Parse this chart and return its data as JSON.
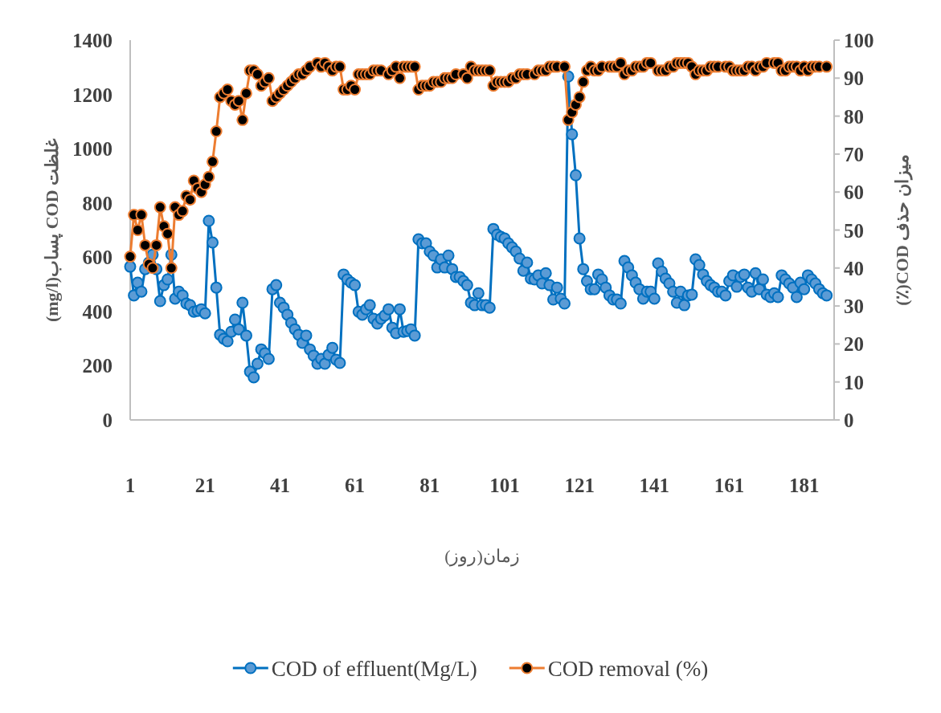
{
  "chart_data": {
    "type": "line",
    "xlabel": "زمان(روز)",
    "ylabel": "غلظت COD پساب(mg/l)",
    "y2label": "میزان حذف COD(٪)",
    "xlim": [
      1,
      189
    ],
    "xticks": [
      1,
      21,
      41,
      61,
      81,
      101,
      121,
      141,
      161,
      181
    ],
    "ylim": [
      0,
      1400
    ],
    "yticks": [
      0,
      200,
      400,
      600,
      800,
      1000,
      1200,
      1400
    ],
    "y2lim": [
      0,
      100
    ],
    "y2ticks": [
      0,
      10,
      20,
      30,
      40,
      50,
      60,
      70,
      80,
      90,
      100
    ],
    "marker": "circle",
    "line_style": "solid",
    "legend": "bottom",
    "series": [
      {
        "name": "COD of effluent(Mg/L)",
        "color": "#0070c0",
        "type": "line",
        "x": [
          1,
          2,
          3,
          4,
          5,
          6,
          7,
          8,
          9,
          10,
          11,
          12,
          13,
          14,
          15,
          16,
          17,
          18,
          19,
          20,
          21,
          22,
          23,
          24,
          25,
          26,
          27,
          28,
          29,
          30,
          31,
          32,
          33,
          34,
          35,
          36,
          37,
          38,
          39,
          40,
          41,
          42,
          43,
          44,
          45,
          46,
          47,
          48,
          49,
          50,
          51,
          52,
          53,
          54,
          55,
          56,
          57,
          58,
          59,
          60,
          61,
          62,
          63,
          64,
          65,
          66,
          67,
          68,
          69,
          70,
          71,
          72,
          73,
          74,
          75,
          76,
          77,
          78,
          79,
          80,
          81,
          82,
          83,
          84,
          85,
          86,
          87,
          88,
          89,
          90,
          91,
          92,
          93,
          94,
          95,
          96,
          97,
          98,
          99,
          100,
          101,
          102,
          103,
          104,
          105,
          106,
          107,
          108,
          109,
          110,
          111,
          112,
          113,
          114,
          115,
          116,
          117,
          118,
          119,
          120,
          121,
          122,
          123,
          124,
          125,
          126,
          127,
          128,
          129,
          130,
          131,
          132,
          133,
          134,
          135,
          136,
          137,
          138,
          139,
          140,
          141,
          142,
          143,
          144,
          145,
          146,
          147,
          148,
          149,
          150,
          151,
          152,
          153,
          154,
          155,
          156,
          157,
          158,
          159,
          160,
          161,
          162,
          163,
          164,
          165,
          166,
          167,
          168,
          169,
          170,
          171,
          172,
          173,
          174,
          175,
          176,
          177,
          178,
          179,
          180,
          181,
          182,
          183,
          184,
          185,
          186,
          187
        ],
        "values": [
          565,
          459,
          506,
          473,
          556,
          580,
          609,
          556,
          438,
          497,
          518,
          609,
          447,
          473,
          459,
          429,
          423,
          399,
          402,
          408,
          393,
          734,
          654,
          488,
          314,
          299,
          290,
          325,
          370,
          334,
          432,
          311,
          178,
          157,
          207,
          260,
          246,
          225,
          482,
          497,
          432,
          414,
          388,
          358,
          334,
          314,
          284,
          311,
          260,
          237,
          207,
          225,
          207,
          240,
          266,
          222,
          210,
          536,
          518,
          506,
          497,
          399,
          388,
          408,
          423,
          373,
          355,
          373,
          385,
          408,
          340,
          320,
          408,
          325,
          328,
          334,
          311,
          666,
          651,
          651,
          621,
          606,
          562,
          592,
          562,
          606,
          556,
          527,
          527,
          512,
          497,
          432,
          423,
          467,
          423,
          423,
          414,
          704,
          683,
          675,
          669,
          651,
          636,
          621,
          595,
          550,
          580,
          521,
          518,
          533,
          503,
          541,
          497,
          444,
          488,
          447,
          429,
          1266,
          1053,
          902,
          669,
          556,
          512,
          482,
          482,
          536,
          518,
          488,
          459,
          444,
          444,
          429,
          586,
          562,
          533,
          506,
          482,
          447,
          473,
          473,
          447,
          577,
          547,
          521,
          503,
          473,
          432,
          473,
          423,
          459,
          462,
          592,
          571,
          536,
          512,
          497,
          488,
          473,
          473,
          459,
          512,
          533,
          491,
          527,
          536,
          488,
          473,
          541,
          482,
          518,
          462,
          453,
          467,
          453,
          533,
          518,
          503,
          488,
          453,
          506,
          482,
          533,
          518,
          503,
          482,
          467,
          459
        ]
      },
      {
        "name": "COD removal (%)",
        "color": "#ed7d31",
        "type": "line",
        "axis": "y2",
        "x": [
          1,
          2,
          3,
          4,
          5,
          6,
          7,
          8,
          9,
          10,
          11,
          12,
          13,
          14,
          15,
          16,
          17,
          18,
          19,
          20,
          21,
          22,
          23,
          24,
          25,
          26,
          27,
          28,
          29,
          30,
          31,
          32,
          33,
          34,
          35,
          36,
          37,
          38,
          39,
          40,
          41,
          42,
          43,
          44,
          45,
          46,
          47,
          48,
          49,
          51,
          52,
          53,
          54,
          55,
          56,
          57,
          58,
          59,
          60,
          61,
          62,
          63,
          64,
          65,
          66,
          67,
          68,
          70,
          71,
          72,
          73,
          74,
          75,
          76,
          77,
          78,
          79,
          80,
          81,
          82,
          83,
          84,
          85,
          86,
          87,
          88,
          90,
          91,
          92,
          93,
          94,
          95,
          96,
          97,
          98,
          99,
          100,
          101,
          102,
          103,
          104,
          105,
          106,
          107,
          109,
          110,
          111,
          112,
          113,
          114,
          115,
          117,
          118,
          119,
          120,
          121,
          122,
          123,
          124,
          125,
          126,
          127,
          129,
          130,
          131,
          132,
          133,
          134,
          135,
          136,
          137,
          138,
          139,
          140,
          142,
          143,
          144,
          145,
          146,
          147,
          148,
          149,
          150,
          151,
          152,
          153,
          154,
          155,
          156,
          157,
          158,
          160,
          161,
          162,
          163,
          164,
          165,
          166,
          167,
          168,
          169,
          170,
          171,
          173,
          174,
          175,
          176,
          177,
          178,
          179,
          180,
          181,
          182,
          183,
          184,
          185,
          187
        ],
        "values": [
          43,
          54,
          50,
          54,
          46,
          41,
          40,
          46,
          56,
          51,
          49,
          40,
          56,
          54,
          55,
          59,
          58,
          63,
          61,
          60,
          62,
          64,
          68,
          76,
          85,
          86,
          87,
          84,
          83,
          84,
          79,
          86,
          92,
          92,
          91,
          88,
          89,
          90,
          84,
          85,
          86,
          87,
          88,
          89,
          90,
          91,
          91,
          92,
          93,
          94,
          93,
          94,
          93,
          92,
          93,
          93,
          87,
          87,
          88,
          87,
          91,
          91,
          91,
          91,
          92,
          92,
          92,
          91,
          92,
          93,
          90,
          93,
          93,
          93,
          93,
          87,
          88,
          88,
          88,
          89,
          89,
          89,
          90,
          90,
          90,
          91,
          91,
          90,
          93,
          92,
          92,
          92,
          92,
          92,
          88,
          89,
          89,
          89,
          89,
          90,
          90,
          91,
          91,
          91,
          91,
          92,
          92,
          92,
          93,
          93,
          93,
          93,
          79,
          81,
          83,
          85,
          89,
          92,
          93,
          92,
          92,
          93,
          93,
          93,
          93,
          94,
          91,
          92,
          92,
          93,
          93,
          93,
          94,
          94,
          92,
          92,
          92,
          93,
          93,
          94,
          94,
          94,
          94,
          93,
          91,
          92,
          92,
          92,
          93,
          93,
          93,
          93,
          93,
          92,
          92,
          92,
          92,
          93,
          93,
          92,
          93,
          93,
          94,
          94,
          94,
          92,
          92,
          93,
          93,
          93,
          92,
          93,
          92,
          93,
          93,
          93,
          93
        ]
      }
    ]
  }
}
